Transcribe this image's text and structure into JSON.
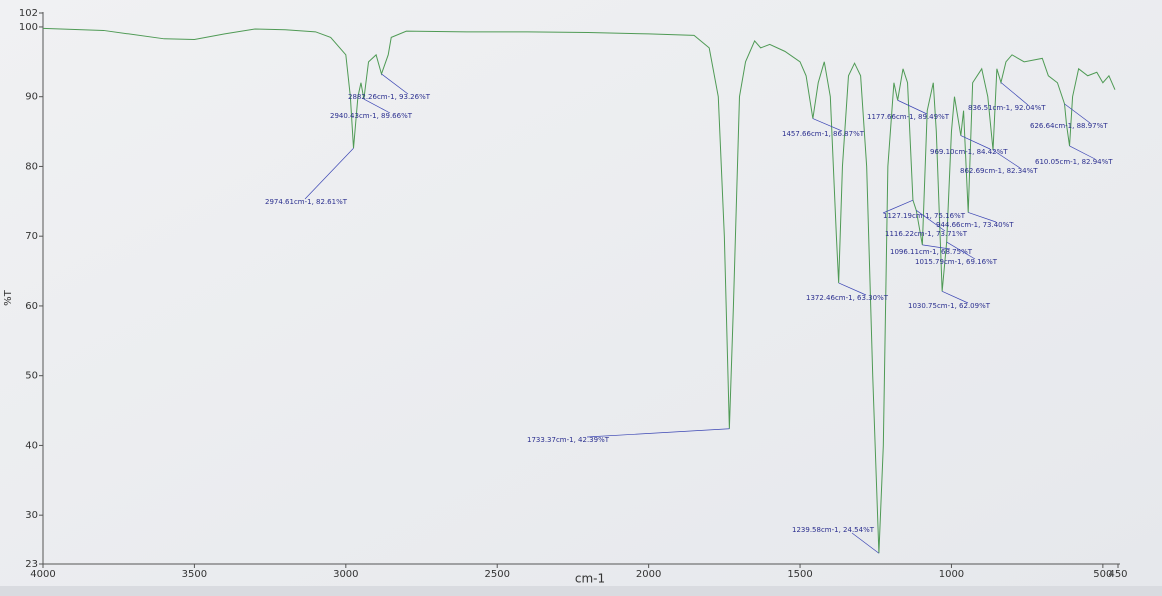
{
  "chart_data": {
    "type": "line",
    "xlabel": "cm-1",
    "ylabel": "%T",
    "color": "#4f9a55",
    "xlim": [
      4000,
      450
    ],
    "ylim": [
      23,
      102
    ],
    "xticks": [
      4000,
      3500,
      3000,
      2500,
      2000,
      1500,
      1000,
      500,
      450
    ],
    "yticks": [
      23,
      30,
      40,
      50,
      60,
      70,
      80,
      90,
      100,
      102
    ],
    "x": [
      4000,
      3800,
      3600,
      3500,
      3400,
      3300,
      3200,
      3100,
      3050,
      3000,
      2985,
      2974.61,
      2960,
      2950,
      2940.43,
      2925,
      2900,
      2882.26,
      2860,
      2850,
      2800,
      2600,
      2400,
      2200,
      2000,
      1850,
      1800,
      1770,
      1750,
      1733.37,
      1720,
      1700,
      1680,
      1650,
      1630,
      1600,
      1550,
      1500,
      1480,
      1457.66,
      1440,
      1420,
      1400,
      1380,
      1372.46,
      1360,
      1340,
      1320,
      1300,
      1280,
      1260,
      1239.58,
      1225,
      1210,
      1190,
      1177.66,
      1160,
      1145,
      1127.19,
      1116.22,
      1096.11,
      1080,
      1060,
      1050,
      1030.75,
      1015.79,
      1000,
      990,
      969.1,
      960,
      944.66,
      930,
      900,
      880,
      862.69,
      850,
      836.51,
      820,
      800,
      760,
      700,
      680,
      650,
      626.64,
      620,
      610.05,
      600,
      580,
      550,
      520,
      500,
      480,
      460
    ],
    "values": [
      99.8,
      99.5,
      98.3,
      98.2,
      99,
      99.7,
      99.6,
      99.3,
      98.5,
      96,
      90,
      82.61,
      90,
      92,
      89.66,
      95,
      96,
      93.26,
      96,
      98.5,
      99.4,
      99.3,
      99.3,
      99.2,
      99,
      98.8,
      97,
      90,
      70,
      42.39,
      60,
      90,
      95,
      98,
      97,
      97.5,
      96.5,
      95,
      93,
      86.87,
      92,
      95,
      90,
      70,
      63.3,
      80,
      93,
      94.8,
      93,
      80,
      50,
      24.54,
      40,
      80,
      92,
      89.49,
      94,
      92,
      75.16,
      73.71,
      68.75,
      88,
      92,
      85,
      62.09,
      69.16,
      85,
      90,
      84.42,
      88,
      73.4,
      92,
      94,
      90,
      82.34,
      94,
      92.04,
      95,
      96,
      95,
      95.5,
      93,
      92,
      88.97,
      86,
      82.94,
      90,
      94,
      93,
      93.5,
      92,
      93,
      91
    ],
    "annotations": [
      {
        "text": "2974.61cm-1, 82.61%T",
        "x": 2974.61,
        "y": 82.61
      },
      {
        "text": "2940.43cm-1, 89.66%T",
        "x": 2940.43,
        "y": 89.66
      },
      {
        "text": "2882.26cm-1, 93.26%T",
        "x": 2882.26,
        "y": 93.26
      },
      {
        "text": "1733.37cm-1, 42.39%T",
        "x": 1733.37,
        "y": 42.39
      },
      {
        "text": "1457.66cm-1, 86.87%T",
        "x": 1457.66,
        "y": 86.87
      },
      {
        "text": "1372.46cm-1, 63.30%T",
        "x": 1372.46,
        "y": 63.3
      },
      {
        "text": "1239.58cm-1, 24.54%T",
        "x": 1239.58,
        "y": 24.54
      },
      {
        "text": "1177.66cm-1, 89.49%T",
        "x": 1177.66,
        "y": 89.49
      },
      {
        "text": "1127.19cm-1, 75.16%T",
        "x": 1127.19,
        "y": 75.16
      },
      {
        "text": "1116.22cm-1, 73.71%T",
        "x": 1116.22,
        "y": 73.71
      },
      {
        "text": "1096.11cm-1, 68.75%T",
        "x": 1096.11,
        "y": 68.75
      },
      {
        "text": "1030.75cm-1, 62.09%T",
        "x": 1030.75,
        "y": 62.09
      },
      {
        "text": "1015.79cm-1, 69.16%T",
        "x": 1015.79,
        "y": 69.16
      },
      {
        "text": "969.10cm-1, 84.42%T",
        "x": 969.1,
        "y": 84.42
      },
      {
        "text": "944.66cm-1, 73.40%T",
        "x": 944.66,
        "y": 73.4
      },
      {
        "text": "862.69cm-1, 82.34%T",
        "x": 862.69,
        "y": 82.34
      },
      {
        "text": "836.51cm-1, 92.04%T",
        "x": 836.51,
        "y": 92.04
      },
      {
        "text": "626.64cm-1, 88.97%T",
        "x": 626.64,
        "y": 88.97
      },
      {
        "text": "610.05cm-1, 82.94%T",
        "x": 610.05,
        "y": 82.94
      }
    ]
  }
}
